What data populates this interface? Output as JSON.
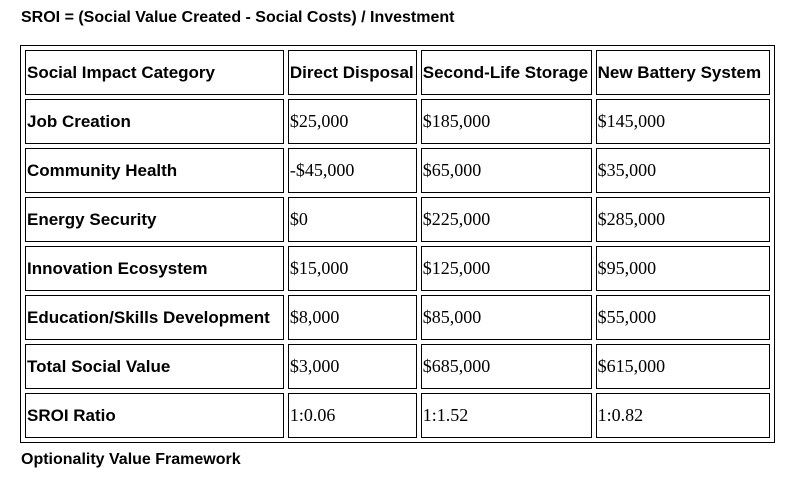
{
  "header": {
    "title": "SROI = (Social Value Created - Social Costs) / Investment"
  },
  "table": {
    "headers": [
      "Social Impact Category",
      "Direct Disposal",
      "Second-Life Storage",
      "New Battery System"
    ],
    "rows": [
      [
        "Job Creation",
        "$25,000",
        "$185,000",
        "$145,000"
      ],
      [
        "Community Health",
        "-$45,000",
        "$65,000",
        "$35,000"
      ],
      [
        "Energy Security",
        "$0",
        "$225,000",
        "$285,000"
      ],
      [
        "Innovation Ecosystem",
        "$15,000",
        "$125,000",
        "$95,000"
      ],
      [
        "Education/Skills Development",
        "$8,000",
        "$85,000",
        "$55,000"
      ],
      [
        "Total Social Value",
        "$3,000",
        "$685,000",
        "$615,000"
      ],
      [
        "SROI Ratio",
        "1:0.06",
        "1:1.52",
        "1:0.82"
      ]
    ]
  },
  "footer": {
    "text": "Optionality Value Framework"
  }
}
